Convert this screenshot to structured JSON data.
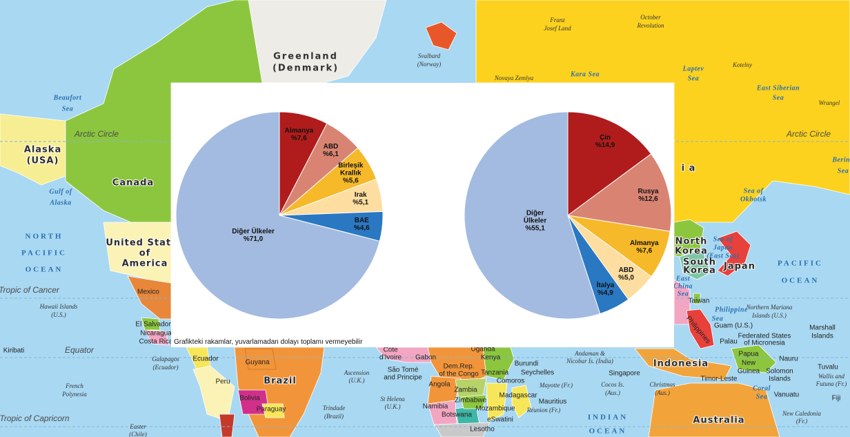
{
  "chart_data": [
    {
      "type": "pie",
      "categories": [
        "Almanya",
        "ABD",
        "Birleşik Krallık",
        "Irak",
        "BAE",
        "Diğer Ülkeler"
      ],
      "values": [
        7.6,
        6.1,
        5.6,
        5.1,
        4.6,
        71.0
      ],
      "value_labels": [
        "%7,6",
        "%6,1",
        "%5,6",
        "%5,1",
        "%4,6",
        "%71,0"
      ],
      "colors": [
        "#b01c1c",
        "#d98473",
        "#f6b929",
        "#fddea0",
        "#2a78c2",
        "#a3bbe0"
      ]
    },
    {
      "type": "pie",
      "categories": [
        "Çin",
        "Rusya",
        "Almanya",
        "ABD",
        "İtalya",
        "Diğer Ülkeler"
      ],
      "values": [
        14.9,
        12.6,
        7.6,
        5.0,
        4.9,
        55.1
      ],
      "value_labels": [
        "%14,9",
        "%12,6",
        "%7,6",
        "%5,0",
        "%4,9",
        "%55,1"
      ],
      "colors": [
        "#b01c1c",
        "#d98473",
        "#f6b929",
        "#fddea0",
        "#2a78c2",
        "#a3bbe0"
      ]
    }
  ],
  "note": "Grafikteki rakamlar, yuvarlamadan dolayı toplamı vermeyebilir",
  "map": {
    "labels": [
      "Greenland",
      "(Denmark)",
      "Franz",
      "Josef Land",
      "October",
      "Revolution",
      "Svalbard",
      "(Norway)",
      "Novaya Zemlya",
      "Kara Sea",
      "Laptev",
      "Sea",
      "Kotelny",
      "East Siberian",
      "Sea",
      "Wrangel",
      "Beaufort",
      "Sea",
      "Arctic Circle",
      "Arctic Circle",
      "Alaska",
      "(USA)",
      "Canada",
      "Gulf of",
      "Alaska",
      "Bering",
      "Sea",
      "Sea of",
      "Okhotsk",
      "NORTH",
      "PACIFIC",
      "OCEAN",
      "United States",
      "of",
      "America",
      "Tropic of Cancer",
      "Hawaii Islands",
      "(U.S.)",
      "Mexico",
      "El Salvador",
      "Nicaragua",
      "Costa Rica",
      "Kiribati",
      "Equator",
      "Galapagos",
      "(Ecuador)",
      "Ecuador",
      "Guyana",
      "Peru",
      "Brazil",
      "Bolivia",
      "Paraguay",
      "French",
      "Polynesia",
      "Tropic of Capricorn",
      "Easter",
      "(Chile)",
      "Ascension",
      "(U.K.)",
      "St Helena",
      "(U.K.)",
      "Trindade",
      "(Brazil)",
      "Côte",
      "d'Ivoire",
      "São Tomé",
      "and Principe",
      "Gabon",
      "Uganda",
      "Kenya",
      "Dem.Rep.",
      "of the Congo",
      "Tanzania",
      "Burundi",
      "Seychelles",
      "Comoros",
      "Mayotte (Fr.)",
      "Angola",
      "Zambia",
      "Madagascar",
      "Zimbabwe",
      "Mauritius",
      "Réunion (Fr.)",
      "Namibia",
      "Mozambique",
      "Botswana",
      "eSwatini",
      "Lesotho",
      "INDIAN",
      "OCEAN",
      "Andaman &",
      "Nicobar Is. (India)",
      "Singapore",
      "Cocos Is.",
      "(Aus.)",
      "Christmas",
      "(Aus.)",
      "Indonesia",
      "Timor-Leste",
      "Papua",
      "New",
      "Guinea",
      "Australia",
      "Coral",
      "Sea",
      "Vanuatu",
      "Solomon",
      "Islands",
      "Nauru",
      "Tuvalu",
      "Wallis and",
      "Futuna (Fr.)",
      "Fiji",
      "New Caledonia",
      "(Fr.)",
      "Marshall",
      "Islands",
      "Federated States",
      "of Micronesia",
      "Palau",
      "Guam (U.S.)",
      "Northern Mariana",
      "Islands (U.S.)",
      "Philippine",
      "Sea",
      "North",
      "Korea",
      "South",
      "Korea",
      "Japan",
      "Sea of",
      "Japan",
      "(East Sea)",
      "East",
      "China",
      "Sea",
      "Taiwan",
      "Philippines",
      "PACIFIC",
      "OCEAN",
      "i   a"
    ]
  }
}
